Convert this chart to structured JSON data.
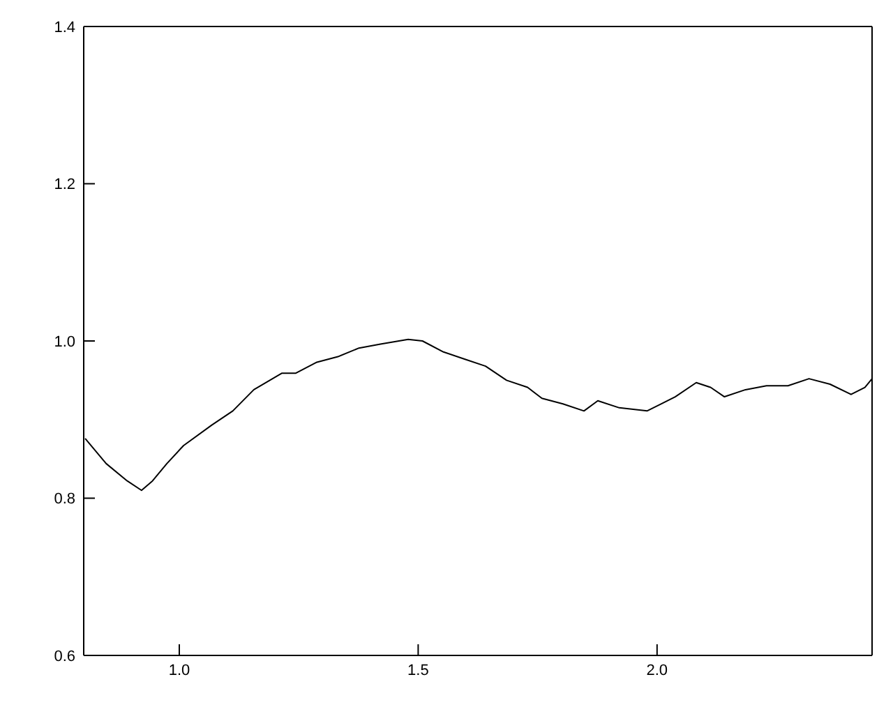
{
  "chart_data": {
    "type": "line",
    "xlim": [
      0.8,
      2.45
    ],
    "xticks": [
      {
        "value": 1,
        "label": "1.0"
      },
      {
        "value": 1.5,
        "label": "1.5"
      },
      {
        "value": 2,
        "label": "2.0"
      }
    ],
    "ylim": [
      0.6,
      1.4
    ],
    "yticks": [
      {
        "value": 0.6,
        "label": "0.6"
      },
      {
        "value": 0.8,
        "label": "0.8"
      },
      {
        "value": 1,
        "label": "1.0"
      },
      {
        "value": 1.2,
        "label": "1.2"
      },
      {
        "value": 1.4,
        "label": "1.4"
      }
    ],
    "marker": "none",
    "line_style": "solid",
    "series": [
      {
        "color": "#000000",
        "x": [
          0.803,
          0.847,
          0.891,
          0.921,
          0.944,
          0.974,
          1.009,
          1.068,
          1.112,
          1.156,
          1.215,
          1.244,
          1.288,
          1.332,
          1.376,
          1.421,
          1.479,
          1.509,
          1.553,
          1.597,
          1.641,
          1.685,
          1.729,
          1.759,
          1.803,
          1.847,
          1.876,
          1.921,
          1.979,
          2.009,
          2.038,
          2.082,
          2.112,
          2.141,
          2.185,
          2.229,
          2.274,
          2.318,
          2.362,
          2.406,
          2.435,
          2.45
        ],
        "values": [
          0.876,
          0.844,
          0.822,
          0.81,
          0.822,
          0.844,
          0.867,
          0.893,
          0.911,
          0.938,
          0.959,
          0.959,
          0.973,
          0.98,
          0.991,
          0.996,
          1.002,
          1.0,
          0.986,
          0.977,
          0.968,
          0.95,
          0.941,
          0.927,
          0.92,
          0.911,
          0.924,
          0.915,
          0.911,
          0.92,
          0.929,
          0.947,
          0.941,
          0.929,
          0.938,
          0.943,
          0.943,
          0.952,
          0.945,
          0.932,
          0.941,
          0.952
        ]
      }
    ]
  }
}
